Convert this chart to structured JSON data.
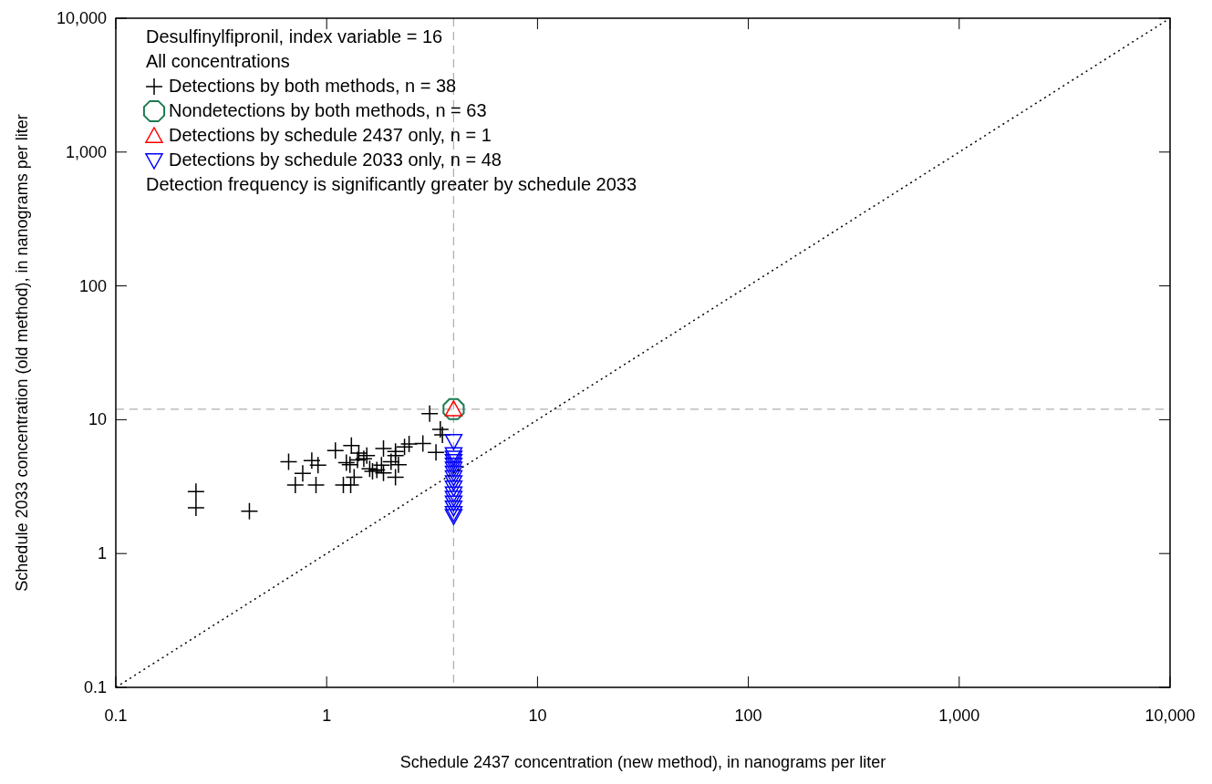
{
  "chart_data": {
    "type": "scatter",
    "title": "Desulfinylfipronil, index variable = 16",
    "subtitle": "All concentrations",
    "xlabel": "Schedule 2437 concentration (new method), in nanograms per liter",
    "ylabel": "Schedule 2033 concentration (old method), in nanograms per liter",
    "annotations": [
      "Detection frequency is significantly greater by schedule 2033"
    ],
    "log": "xy",
    "xlim": [
      0.1,
      10000
    ],
    "ylim": [
      0.1,
      10000
    ],
    "xticks": [
      0.1,
      1,
      10,
      100,
      {
        "value": 1000,
        "label": "1,000"
      },
      {
        "value": 10000,
        "label": "10,000"
      }
    ],
    "yticks": [
      0.1,
      1,
      10,
      100,
      {
        "value": 1000,
        "label": "1,000"
      },
      {
        "value": 10000,
        "label": "10,000"
      }
    ],
    "grid": false,
    "legend": "top left",
    "ref_lines": [
      {
        "axis": "x",
        "value": 4,
        "color": "#b0b0b0",
        "line_style": "dashed"
      },
      {
        "axis": "y",
        "value": 12,
        "color": "#b0b0b0",
        "line_style": "dashed"
      }
    ],
    "series": [
      {
        "name": "Detections by both methods, n = 38",
        "color": "#000000",
        "marker": "cross",
        "x": [
          0.24,
          0.24,
          0.43,
          0.66,
          0.85,
          0.91,
          0.77,
          0.71,
          0.89,
          1.1,
          1.31,
          1.24,
          1.29,
          1.42,
          1.55,
          1.35,
          1.2,
          1.3,
          1.65,
          1.73,
          1.86,
          1.86,
          2.12,
          2.19,
          2.12,
          2.02,
          2.34,
          2.46,
          2.86,
          3.08,
          3.46,
          3.54,
          3.3,
          2.12,
          1.5,
          1.82,
          1.6,
          1.4
        ],
        "values": [
          2.9,
          2.2,
          2.07,
          4.86,
          4.94,
          4.57,
          3.97,
          3.25,
          3.25,
          5.87,
          6.41,
          4.77,
          4.62,
          5.63,
          5.4,
          3.71,
          3.25,
          3.25,
          4.11,
          4.22,
          4.0,
          6.08,
          5.78,
          4.62,
          3.71,
          4.86,
          6.25,
          6.58,
          6.64,
          11.1,
          8.46,
          7.7,
          5.69,
          5.4,
          5.1,
          4.57,
          4.3,
          5.0
        ]
      },
      {
        "name": "Nondetections by both methods,  n = 63",
        "color": "#1a7a50",
        "marker": "circle",
        "x": [
          4
        ],
        "values": [
          12
        ]
      },
      {
        "name": "Detections by schedule 2437 only, n = 1",
        "color": "#ff0000",
        "marker": "triangle",
        "x": [
          4
        ],
        "values": [
          12
        ]
      },
      {
        "name": "Detections by schedule 2033 only,  n = 48",
        "color": "#0000ff",
        "marker": "triangle-down",
        "x": [
          4,
          4,
          4,
          4,
          4,
          4,
          4,
          4,
          4,
          4,
          4,
          4,
          4,
          4,
          4,
          4
        ],
        "values": [
          6.9,
          5.5,
          5.2,
          4.9,
          4.6,
          4.3,
          4.0,
          3.7,
          3.4,
          3.1,
          2.8,
          2.6,
          2.4,
          2.2,
          2.0,
          1.9
        ]
      },
      {
        "type": "line",
        "color": "#000000",
        "line_style": "dotted",
        "x": [
          0.1,
          10000
        ],
        "values": [
          0.1,
          10000
        ]
      }
    ]
  }
}
